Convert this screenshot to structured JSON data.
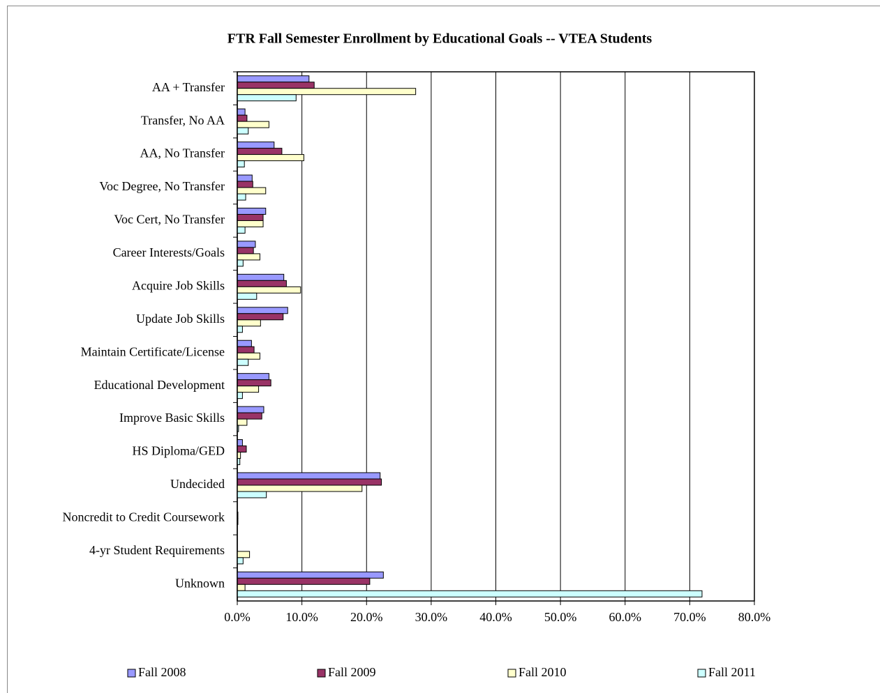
{
  "chart_data": {
    "type": "bar",
    "orientation": "horizontal",
    "title": "FTR Fall Semester Enrollment by Educational Goals -- VTEA Students",
    "categories": [
      "AA + Transfer",
      "Transfer, No AA",
      "AA, No Transfer",
      "Voc Degree, No Transfer",
      "Voc Cert, No Transfer",
      "Career Interests/Goals",
      "Acquire Job Skills",
      "Update Job Skills",
      "Maintain Certificate/License",
      "Educational Development",
      "Improve Basic Skills",
      "HS Diploma/GED",
      "Undecided",
      "Noncredit to Credit Coursework",
      "4-yr Student Requirements",
      "Unknown"
    ],
    "series": [
      {
        "name": "Fall 2008",
        "color": "#9999ff",
        "values": [
          11.1,
          1.2,
          5.7,
          2.3,
          4.4,
          2.8,
          7.2,
          7.8,
          2.2,
          4.9,
          4.1,
          0.8,
          22.1,
          0,
          0,
          22.6
        ]
      },
      {
        "name": "Fall 2009",
        "color": "#993366",
        "values": [
          11.9,
          1.5,
          6.9,
          2.4,
          4.0,
          2.5,
          7.6,
          7.1,
          2.6,
          5.2,
          3.8,
          1.4,
          22.3,
          0.1,
          0,
          20.5
        ]
      },
      {
        "name": "Fall 2010",
        "color": "#ffffcc",
        "values": [
          27.6,
          4.9,
          10.3,
          4.4,
          4.0,
          3.5,
          9.8,
          3.6,
          3.5,
          3.3,
          1.5,
          0.5,
          19.3,
          0.1,
          1.9,
          1.2
        ]
      },
      {
        "name": "Fall 2011",
        "color": "#ccffff",
        "values": [
          9.1,
          1.7,
          1.1,
          1.3,
          1.2,
          0.9,
          3.0,
          0.8,
          1.7,
          0.8,
          0.2,
          0.4,
          4.5,
          0,
          0.9,
          71.9
        ]
      }
    ],
    "xlim": [
      0,
      80
    ],
    "xticks": [
      {
        "value": 0,
        "label": "0.0%"
      },
      {
        "value": 10,
        "label": "10.0%"
      },
      {
        "value": 20,
        "label": "20.0%"
      },
      {
        "value": 30,
        "label": "30.0%"
      },
      {
        "value": 40,
        "label": "40.0%"
      },
      {
        "value": 50,
        "label": "50.0%"
      },
      {
        "value": 60,
        "label": "60.0%"
      },
      {
        "value": 70,
        "label": "70.0%"
      },
      {
        "value": 80,
        "label": "80.0%"
      }
    ],
    "grid": true,
    "legend": "bottom"
  }
}
